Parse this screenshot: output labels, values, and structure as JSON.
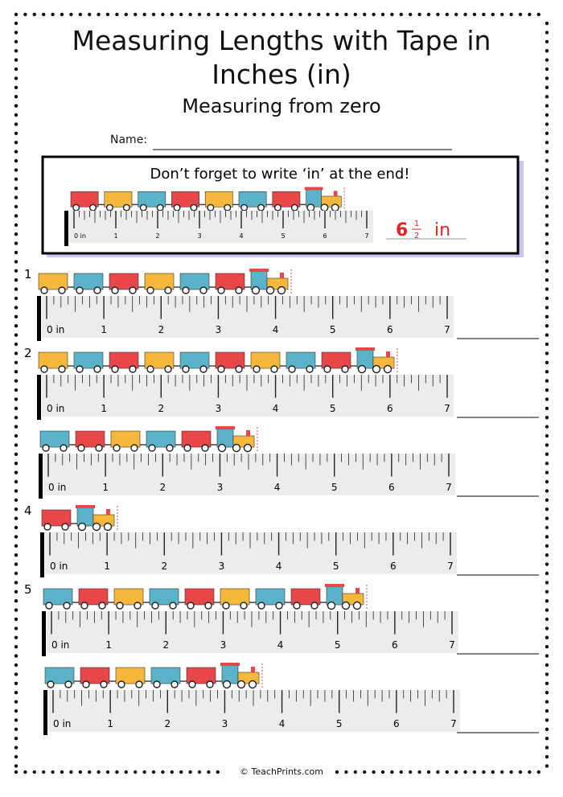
{
  "header": {
    "title": "Measuring Lengths with Tape in Inches (in)",
    "subtitle": "Measuring from zero",
    "name_label": "Name:"
  },
  "example": {
    "instruction": "Don’t forget to write ‘in’ at the end!",
    "answer": {
      "whole": "6",
      "numerator": "1",
      "denominator": "2",
      "unit": "in"
    }
  },
  "ruler_labels": [
    "0 in",
    "1",
    "2",
    "3",
    "4",
    "5",
    "6",
    "7"
  ],
  "problem_numbers": [
    "1",
    "2",
    null,
    "4",
    "5",
    null
  ],
  "footer": "© TeachPrints.com"
}
